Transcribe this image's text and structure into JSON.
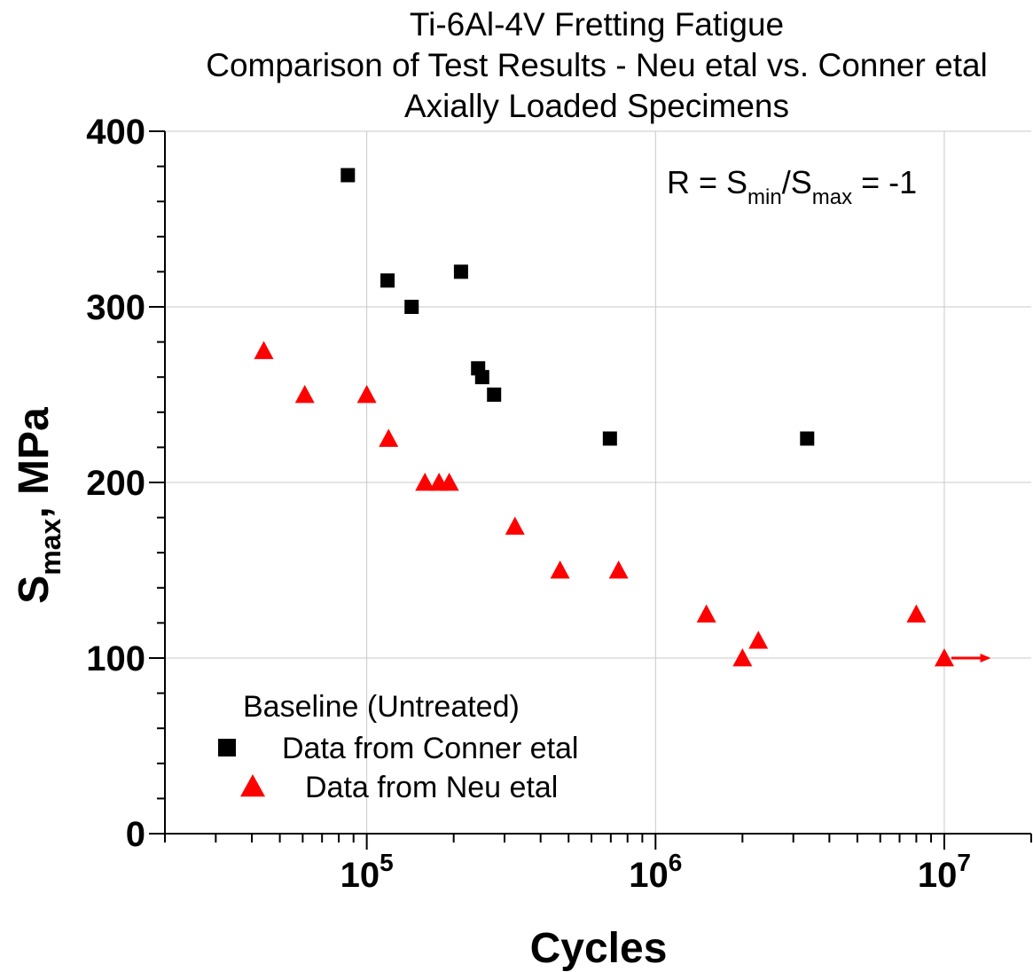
{
  "chart_data": {
    "type": "scatter",
    "title": [
      "Ti-6Al-4V Fretting Fatigue",
      "Comparison of Test Results - Neu etal vs. Conner etal",
      "Axially Loaded Specimens"
    ],
    "xlabel": "Cycles",
    "ylabel": {
      "main": "S",
      "sub": "max",
      "suffix": ", MPa"
    },
    "x_scale": "log",
    "xlim": [
      20000,
      20000000
    ],
    "ylim": [
      0,
      400
    ],
    "grid": true,
    "x_ticks": [
      {
        "value": 100000,
        "base": "10",
        "exp": "5"
      },
      {
        "value": 1000000,
        "base": "10",
        "exp": "6"
      },
      {
        "value": 10000000,
        "base": "10",
        "exp": "7"
      }
    ],
    "y_ticks": [
      "0",
      "100",
      "200",
      "300",
      "400"
    ],
    "annotation": {
      "prefix": "R = S",
      "sub1": "min",
      "mid": "/S",
      "sub2": "max",
      "suffix": " = -1"
    },
    "legend": {
      "title": "Baseline (Untreated)",
      "placement": "bottom-left"
    },
    "series": [
      {
        "name": "Data from Conner etal",
        "marker": "square",
        "color": "#000000",
        "points": [
          [
            86000,
            375
          ],
          [
            118000,
            315
          ],
          [
            143000,
            300
          ],
          [
            212000,
            320
          ],
          [
            243000,
            265
          ],
          [
            251000,
            260
          ],
          [
            276000,
            250
          ],
          [
            695000,
            225
          ],
          [
            3350000,
            225
          ]
        ]
      },
      {
        "name": "Data from Neu etal",
        "marker": "triangle",
        "color": "#ff0000",
        "points": [
          [
            44000,
            275
          ],
          [
            61000,
            250
          ],
          [
            100000,
            250
          ],
          [
            119000,
            225
          ],
          [
            159000,
            200
          ],
          [
            178000,
            200
          ],
          [
            193000,
            200
          ],
          [
            326000,
            175
          ],
          [
            467000,
            150
          ],
          [
            745000,
            150
          ],
          [
            1500000,
            125
          ],
          [
            2000000,
            100
          ],
          [
            2270000,
            110
          ],
          [
            8000000,
            125
          ],
          [
            10000000,
            100
          ]
        ],
        "runout_arrow": {
          "from": [
            10000000,
            100
          ],
          "to": [
            14500000,
            100
          ]
        }
      }
    ]
  }
}
